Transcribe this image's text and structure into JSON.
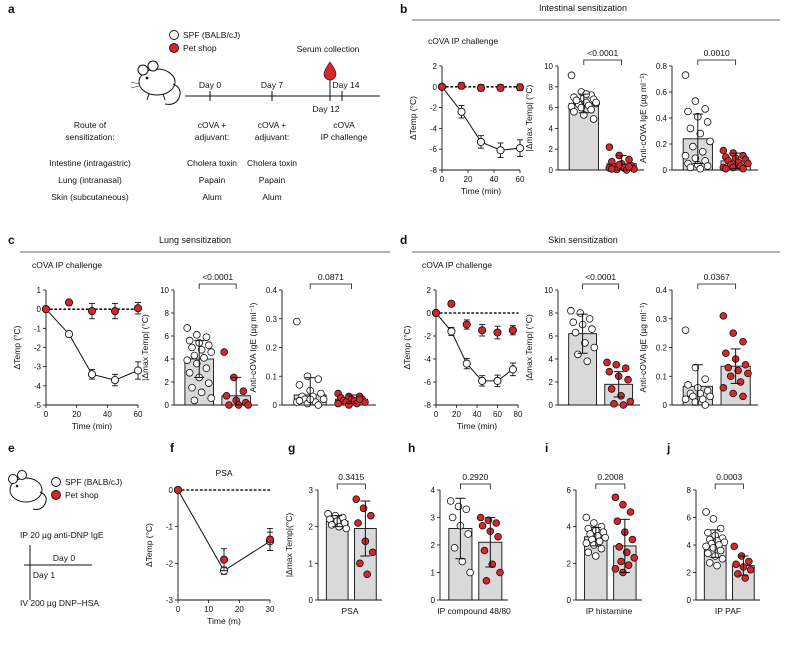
{
  "panels": {
    "a": "a",
    "b": "b",
    "c": "c",
    "d": "d",
    "e": "e",
    "f": "f",
    "g": "g",
    "h": "h",
    "i": "i",
    "j": "j"
  },
  "colors": {
    "spf_fill": "#ffffff",
    "pet_fill": "#d7262b",
    "bar_fill": "#d9d9d9",
    "axis": "#111111"
  },
  "legend": {
    "spf": "SPF (BALB/cJ)",
    "pet": "Pet shop"
  },
  "section_titles": {
    "b": "Intestinal sensitization",
    "c": "Lung sensitization",
    "d": "Skin sensitization"
  },
  "schematic_a": {
    "serum": "Serum collection",
    "day0": "Day 0",
    "day7": "Day 7",
    "day14": "Day 14",
    "day12": "Day 12",
    "route_label_1": "Route of",
    "route_label_2": "sensitization:",
    "cova_1": "cOVA +",
    "cova_2": "adjuvant:",
    "cova2_1": "cOVA +",
    "cova2_2": "adjuvant:",
    "challenge_1": "cOVA",
    "challenge_2": "IP challenge",
    "routes": [
      {
        "route": "Intestine (intragastric)",
        "d0": "Cholera toxin",
        "d7": "Cholera toxin"
      },
      {
        "route": "Lung (intranasal)",
        "d0": "Papain",
        "d7": "Papain"
      },
      {
        "route": "Skin (subcutaneous)",
        "d0": "Alum",
        "d7": "Alum"
      }
    ]
  },
  "schematic_e": {
    "ige": "IP 20 µg anti-DNP IgE",
    "day0": "Day 0",
    "day1": "Day 1",
    "hsa": "IV 200 µg DNP–HSA"
  },
  "chart_data": [
    {
      "id": "b-time",
      "type": "line",
      "subtitle": "cOVA IP challenge",
      "xlabel": "Time (min)",
      "ylabel": "ΔTemp (°C)",
      "xlim": [
        0,
        60
      ],
      "ylim": [
        -8,
        2
      ],
      "xticks": [
        "0",
        "20",
        "40",
        "60"
      ],
      "yticks": [
        "-8",
        "-6",
        "-4",
        "-2",
        "0",
        "2"
      ],
      "x": [
        0,
        15,
        30,
        45,
        60
      ],
      "series": [
        {
          "name": "SPF (BALB/cJ)",
          "values": [
            0,
            -2.4,
            -5.3,
            -6.1,
            -5.9
          ],
          "err": [
            0.15,
            0.6,
            0.6,
            0.7,
            0.8
          ]
        },
        {
          "name": "Pet shop",
          "values": [
            0,
            0.1,
            -0.1,
            -0.1,
            -0.05
          ],
          "err": [
            0.1,
            0.3,
            0.3,
            0.3,
            0.3
          ]
        }
      ]
    },
    {
      "id": "b-max",
      "type": "bar",
      "ylabel": "|Δmax Temp| (°C)",
      "ylim": [
        0,
        10
      ],
      "yticks": [
        "0",
        "2",
        "4",
        "6",
        "8",
        "10"
      ],
      "pvalue": "<0.0001",
      "categories": [
        "SPF (BALB/cJ)",
        "Pet shop"
      ],
      "values": [
        6.4,
        0.6
      ],
      "errors": [
        0.9,
        0.8
      ],
      "points": [
        [
          9.1,
          7.5,
          7.2,
          7.0,
          6.9,
          6.8,
          6.6,
          6.5,
          6.4,
          6.3,
          6.2,
          6.1,
          6.0,
          5.8,
          5.6,
          5.3,
          4.9,
          6.7,
          7.3,
          6.5
        ],
        [
          2.2,
          1.4,
          1.0,
          0.8,
          0.6,
          0.4,
          0.3,
          0.2,
          0.1,
          0.05,
          0.0,
          0.2,
          0.5,
          0.3,
          0.1
        ]
      ]
    },
    {
      "id": "b-ige",
      "type": "bar",
      "ylabel": "Anti-cOVA IgE (µg ml⁻¹)",
      "ylim": [
        0,
        0.8
      ],
      "yticks": [
        "0",
        "0.2",
        "0.4",
        "0.6",
        "0.8"
      ],
      "pvalue": "0.0010",
      "categories": [
        "SPF (BALB/cJ)",
        "Pet shop"
      ],
      "values": [
        0.24,
        0.07
      ],
      "errors": [
        0.19,
        0.06
      ],
      "points": [
        [
          0.73,
          0.53,
          0.47,
          0.45,
          0.41,
          0.37,
          0.32,
          0.28,
          0.22,
          0.18,
          0.14,
          0.11,
          0.09,
          0.07,
          0.05,
          0.04,
          0.03,
          0.02,
          0.01
        ],
        [
          0.15,
          0.13,
          0.11,
          0.1,
          0.09,
          0.08,
          0.07,
          0.06,
          0.05,
          0.04,
          0.03,
          0.02,
          0.02,
          0.01,
          0.01
        ]
      ]
    },
    {
      "id": "c-time",
      "type": "line",
      "subtitle": "cOVA IP challenge",
      "xlabel": "Time (min)",
      "ylabel": "ΔTemp (°C)",
      "xlim": [
        0,
        60
      ],
      "ylim": [
        -5,
        1
      ],
      "xticks": [
        "0",
        "20",
        "40",
        "60"
      ],
      "yticks": [
        "-5",
        "-4",
        "-3",
        "-2",
        "-1",
        "0",
        "1"
      ],
      "x": [
        0,
        15,
        30,
        45,
        60
      ],
      "series": [
        {
          "name": "SPF (BALB/cJ)",
          "values": [
            0,
            -1.3,
            -3.4,
            -3.7,
            -3.2
          ],
          "err": [
            0.1,
            0.1,
            0.25,
            0.3,
            0.45
          ]
        },
        {
          "name": "Pet shop",
          "values": [
            0,
            0.35,
            -0.1,
            -0.1,
            0.05
          ],
          "err": [
            0.05,
            0.1,
            0.4,
            0.4,
            0.3
          ]
        }
      ]
    },
    {
      "id": "c-max",
      "type": "bar",
      "ylabel": "|Δmax Temp| (°C)",
      "ylim": [
        0,
        10
      ],
      "yticks": [
        "0",
        "2",
        "4",
        "6",
        "8",
        "10"
      ],
      "pvalue": "<0.0001",
      "categories": [
        "SPF (BALB/cJ)",
        "Pet shop"
      ],
      "values": [
        4.0,
        0.8
      ],
      "errors": [
        1.6,
        1.6
      ],
      "points": [
        [
          6.7,
          6.1,
          5.9,
          5.6,
          5.4,
          5.2,
          5.0,
          4.8,
          4.6,
          4.3,
          4.1,
          3.9,
          3.6,
          3.2,
          2.8,
          2.4,
          1.9,
          1.5,
          1.1,
          0.6,
          0.4
        ],
        [
          4.6,
          2.4,
          1.2,
          0.8,
          0.4,
          0.2,
          0.0,
          0.0,
          0.0
        ]
      ]
    },
    {
      "id": "c-ige",
      "type": "bar",
      "ylabel": "Anti-cOVA IgE (µg ml⁻¹)",
      "ylim": [
        0,
        0.4
      ],
      "yticks": [
        "0",
        "0.1",
        "0.2",
        "0.3",
        "0.4"
      ],
      "pvalue": "0.0871",
      "categories": [
        "SPF (BALB/cJ)",
        "Pet shop"
      ],
      "values": [
        0.035,
        0.02
      ],
      "errors": [
        0.06,
        0.015
      ],
      "points": [
        [
          0.29,
          0.1,
          0.09,
          0.07,
          0.05,
          0.04,
          0.03,
          0.03,
          0.02,
          0.02,
          0.01,
          0.01,
          0.005,
          0.0,
          0.015,
          0.02
        ],
        [
          0.04,
          0.03,
          0.03,
          0.025,
          0.02,
          0.02,
          0.015,
          0.015,
          0.01,
          0.01,
          0.005,
          0.005,
          0.0,
          0.02
        ]
      ]
    },
    {
      "id": "d-time",
      "type": "line",
      "subtitle": "cOVA IP challenge",
      "xlabel": "Time (min)",
      "ylabel": "ΔTemp (°C)",
      "xlim": [
        0,
        80
      ],
      "ylim": [
        -8,
        2
      ],
      "xticks": [
        "0",
        "20",
        "40",
        "60",
        "80"
      ],
      "yticks": [
        "-8",
        "-6",
        "-4",
        "-2",
        "0",
        "2"
      ],
      "x": [
        0,
        15,
        30,
        45,
        60,
        75
      ],
      "series": [
        {
          "name": "SPF (BALB/cJ)",
          "values": [
            0,
            -1.6,
            -4.4,
            -5.9,
            -5.9,
            -4.9
          ],
          "err": [
            0.1,
            0.35,
            0.45,
            0.45,
            0.5,
            0.55
          ]
        },
        {
          "name": "Pet shop",
          "values": [
            0,
            0.8,
            -1.0,
            -1.5,
            -1.7,
            -1.5
          ],
          "err": [
            0.05,
            0.2,
            0.4,
            0.5,
            0.55,
            0.4
          ]
        }
      ]
    },
    {
      "id": "d-max",
      "type": "bar",
      "ylabel": "|Δmax Temp| (°C)",
      "ylim": [
        0,
        10
      ],
      "yticks": [
        "0",
        "2",
        "4",
        "6",
        "8",
        "10"
      ],
      "pvalue": "<0.0001",
      "categories": [
        "SPF (BALB/cJ)",
        "Pet shop"
      ],
      "values": [
        6.2,
        1.8
      ],
      "errors": [
        1.7,
        1.1
      ],
      "points": [
        [
          8.2,
          8.0,
          7.5,
          7.2,
          7.0,
          6.6,
          6.3,
          5.4,
          5.0,
          4.4,
          3.8
        ],
        [
          3.7,
          3.5,
          3.2,
          2.9,
          2.5,
          2.2,
          1.4,
          0.8,
          0.3,
          0.1,
          0.0
        ]
      ]
    },
    {
      "id": "d-ige",
      "type": "bar",
      "ylabel": "Anti-cOVA IgE (µg ml⁻¹)",
      "ylim": [
        0,
        0.4
      ],
      "yticks": [
        "0",
        "0.1",
        "0.2",
        "0.3",
        "0.4"
      ],
      "pvalue": "0.0367",
      "categories": [
        "SPF (BALB/cJ)",
        "Pet shop"
      ],
      "values": [
        0.065,
        0.135
      ],
      "errors": [
        0.075,
        0.06
      ],
      "points": [
        [
          0.26,
          0.13,
          0.09,
          0.07,
          0.06,
          0.05,
          0.04,
          0.04,
          0.03,
          0.03,
          0.02,
          0.02,
          0.01,
          0.0
        ],
        [
          0.31,
          0.25,
          0.22,
          0.18,
          0.16,
          0.14,
          0.13,
          0.12,
          0.11,
          0.1,
          0.08,
          0.06,
          0.04,
          0.03
        ]
      ]
    },
    {
      "id": "f-time",
      "type": "line",
      "title": "PSA",
      "xlabel": "Time (m)",
      "ylabel": "ΔTemp (°C)",
      "xlim": [
        0,
        30
      ],
      "ylim": [
        -3,
        0
      ],
      "xticks": [
        "0",
        "10",
        "20",
        "30"
      ],
      "yticks": [
        "-3",
        "-2",
        "-1",
        "0"
      ],
      "x": [
        0,
        15,
        30
      ],
      "series": [
        {
          "name": "SPF (BALB/cJ)",
          "values": [
            0,
            -2.2,
            -1.4
          ],
          "err": [
            0.05,
            0.1,
            0.25
          ]
        },
        {
          "name": "Pet shop",
          "values": [
            0,
            -1.9,
            -1.35
          ],
          "err": [
            0.05,
            0.3,
            0.3
          ]
        }
      ]
    },
    {
      "id": "g",
      "type": "bar",
      "xlabel": "PSA",
      "ylabel": "|Δmax Temp|(°C)",
      "ylim": [
        0,
        3
      ],
      "yticks": [
        "0",
        "1",
        "2",
        "3"
      ],
      "pvalue": "0.3415",
      "categories": [
        "SPF (BALB/cJ)",
        "Pet shop"
      ],
      "values": [
        2.15,
        1.95
      ],
      "errors": [
        0.15,
        0.75
      ],
      "points": [
        [
          2.35,
          2.3,
          2.25,
          2.2,
          2.15,
          2.1,
          2.05,
          2.0,
          1.95
        ],
        [
          2.75,
          2.5,
          2.3,
          2.1,
          1.6,
          1.3,
          1.0,
          0.7
        ]
      ]
    },
    {
      "id": "h",
      "type": "bar",
      "xlabel": "IP compound 48/80",
      "ylabel": "",
      "ylim": [
        0,
        4
      ],
      "yticks": [
        "0",
        "1",
        "2",
        "3",
        "4"
      ],
      "pvalue": "0.2920",
      "categories": [
        "SPF (BALB/cJ)",
        "Pet shop"
      ],
      "values": [
        2.6,
        2.1
      ],
      "errors": [
        1.1,
        0.9
      ],
      "points": [
        [
          3.6,
          3.4,
          3.3,
          3.0,
          2.7,
          2.4,
          1.9,
          1.4,
          1.0
        ],
        [
          3.0,
          2.9,
          2.8,
          2.7,
          2.5,
          2.3,
          1.8,
          1.3,
          1.0,
          0.7
        ]
      ]
    },
    {
      "id": "i",
      "type": "bar",
      "xlabel": "IP histamine",
      "ylabel": "",
      "ylim": [
        0,
        6
      ],
      "yticks": [
        "0",
        "2",
        "4",
        "6"
      ],
      "pvalue": "0.2008",
      "categories": [
        "SPF (BALB/cJ)",
        "Pet shop"
      ],
      "values": [
        3.45,
        2.95
      ],
      "errors": [
        0.5,
        1.45
      ],
      "points": [
        [
          4.5,
          4.2,
          4.0,
          3.9,
          3.8,
          3.7,
          3.6,
          3.5,
          3.4,
          3.3,
          3.2,
          3.1,
          3.0,
          2.8,
          2.6,
          2.4
        ],
        [
          5.6,
          5.2,
          4.8,
          4.3,
          3.7,
          3.3,
          2.9,
          2.6,
          2.3,
          2.1,
          1.9,
          1.7,
          1.5
        ]
      ]
    },
    {
      "id": "j",
      "type": "bar",
      "xlabel": "IP PAF",
      "ylabel": "",
      "ylim": [
        0,
        8
      ],
      "yticks": [
        "0",
        "2",
        "4",
        "6",
        "8"
      ],
      "pvalue": "0.0003",
      "categories": [
        "SPF (BALB/cJ)",
        "Pet shop"
      ],
      "values": [
        4.1,
        2.5
      ],
      "errors": [
        1.0,
        0.7
      ],
      "points": [
        [
          6.4,
          5.9,
          5.2,
          4.9,
          4.7,
          4.5,
          4.4,
          4.3,
          4.2,
          4.1,
          4.0,
          3.9,
          3.8,
          3.6,
          3.4,
          3.2,
          3.0,
          2.7,
          2.5
        ],
        [
          3.9,
          3.2,
          2.8,
          2.6,
          2.4,
          2.2,
          1.9,
          1.6
        ]
      ]
    }
  ]
}
